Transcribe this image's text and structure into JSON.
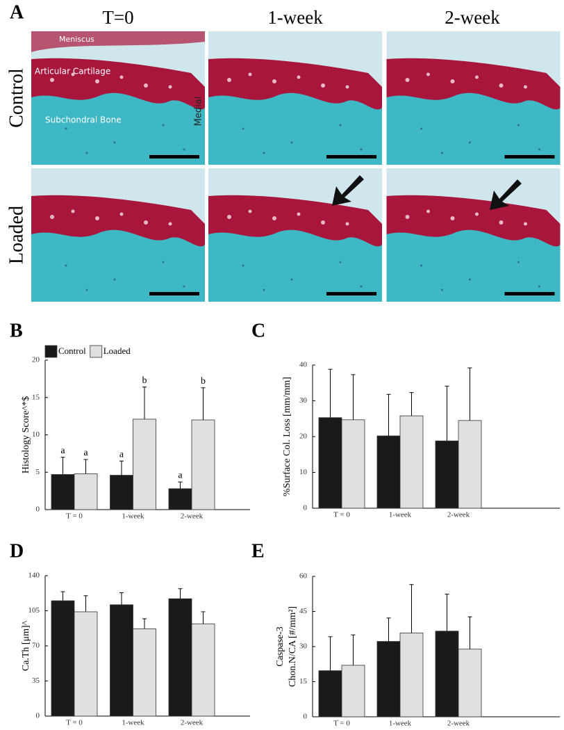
{
  "panel_a": {
    "letter": "A",
    "columns": [
      "T=0",
      "1-week",
      "2-week"
    ],
    "rows": [
      "Control",
      "Loaded"
    ],
    "tissue_labels": {
      "meniscus": "Meniscus",
      "cartilage": "Articular Cartilage",
      "bone": "Subchondral Bone",
      "side": "Medial"
    }
  },
  "chart_data": [
    {
      "type": "bar",
      "panel": "B",
      "ylabel": [
        "Histology Score^*$"
      ],
      "categories": [
        "T = 0",
        "1-week",
        "2-week"
      ],
      "ylim": [
        0,
        20
      ],
      "yticks": [
        0,
        5,
        10,
        15,
        20
      ],
      "legend": "top-left",
      "series": [
        {
          "name": "Control",
          "color": "#1a1a1a",
          "values": [
            4.7,
            4.6,
            2.8
          ],
          "errors": [
            2.3,
            1.9,
            0.9
          ],
          "letters": [
            "a",
            "a",
            "a"
          ]
        },
        {
          "name": "Loaded",
          "color": "#e0e0e0",
          "values": [
            4.8,
            12.1,
            12.0
          ],
          "errors": [
            1.9,
            4.3,
            4.3
          ],
          "letters": [
            "a",
            "b",
            "b"
          ]
        }
      ]
    },
    {
      "type": "bar",
      "panel": "C",
      "ylabel": [
        "%Surface Col. Loss [mm/mm]"
      ],
      "categories": [
        "T = 0",
        "1-week",
        "2-week"
      ],
      "ylim": [
        0,
        40
      ],
      "yticks": [
        0,
        10,
        20,
        30,
        40
      ],
      "series": [
        {
          "name": "Control",
          "color": "#1a1a1a",
          "values": [
            25.3,
            20.2,
            18.8
          ],
          "errors": [
            13.5,
            11.6,
            15.3
          ]
        },
        {
          "name": "Loaded",
          "color": "#e0e0e0",
          "values": [
            24.7,
            25.8,
            24.5
          ],
          "errors": [
            12.6,
            6.5,
            14.7
          ]
        }
      ]
    },
    {
      "type": "bar",
      "panel": "D",
      "ylabel": [
        "Ca.Th [μm]^"
      ],
      "categories": [
        "T = 0",
        "1-week",
        "2-week"
      ],
      "ylim": [
        0,
        140
      ],
      "yticks": [
        0,
        35,
        70,
        105,
        140
      ],
      "series": [
        {
          "name": "Control",
          "color": "#1a1a1a",
          "values": [
            115,
            111,
            117
          ],
          "errors": [
            9,
            12,
            10
          ]
        },
        {
          "name": "Loaded",
          "color": "#e0e0e0",
          "values": [
            104,
            87,
            92
          ],
          "errors": [
            16,
            10,
            12
          ]
        }
      ]
    },
    {
      "type": "bar",
      "panel": "E",
      "ylabel": [
        "Caspase-3",
        "Chon.N/CA [#/mm²]"
      ],
      "categories": [
        "T = 0",
        "1-week",
        "2-week"
      ],
      "ylim": [
        0,
        60
      ],
      "yticks": [
        0,
        15,
        30,
        45,
        60
      ],
      "series": [
        {
          "name": "Control",
          "color": "#1a1a1a",
          "values": [
            19.7,
            32.2,
            36.6
          ],
          "errors": [
            14.5,
            10,
            15.8
          ]
        },
        {
          "name": "Loaded",
          "color": "#e0e0e0",
          "values": [
            22.0,
            35.8,
            28.9
          ],
          "errors": [
            13,
            20.7,
            13.8
          ]
        }
      ]
    }
  ]
}
